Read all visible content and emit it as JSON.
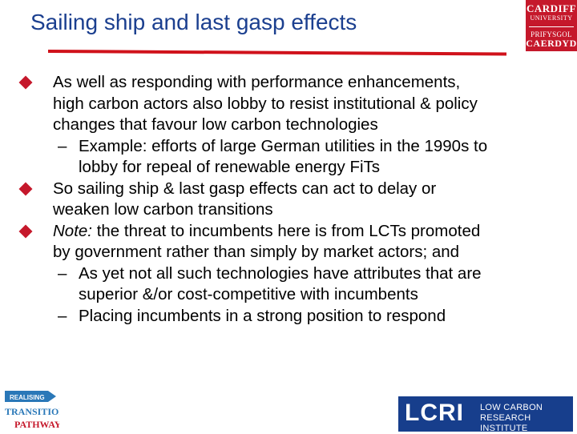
{
  "slide": {
    "title": "Sailing ship and last gasp effects"
  },
  "bullets": [
    {
      "lines": [
        "As well as responding with performance enhancements,",
        "high carbon actors also lobby to resist institutional & policy",
        "changes that favour low carbon technologies"
      ],
      "subs": [
        {
          "dash": "–",
          "lines": [
            "Example: efforts of large German utilities in the 1990s to",
            "lobby for repeal of renewable energy FiTs"
          ]
        }
      ]
    },
    {
      "lines": [
        "So sailing ship & last gasp effects can act to delay or",
        "weaken low carbon transitions"
      ],
      "subs": []
    },
    {
      "lead_italic": "Note:",
      "lines": [
        " the threat to incumbents here is from LCTs promoted",
        "by government rather than simply by market actors; and"
      ],
      "subs": [
        {
          "dash": "–",
          "lines": [
            "As yet not all such technologies have attributes that are",
            "superior &/or cost-competitive with incumbents"
          ]
        },
        {
          "dash": "–",
          "lines": [
            "Placing incumbents in a strong position to respond"
          ]
        }
      ]
    }
  ],
  "logos": {
    "cardiff": {
      "line1": "CARDIFF",
      "line2": "UNIVERSITY",
      "line3": "PRIFYSGOL",
      "line4": "CAERDYD"
    },
    "transition_pathways": {
      "line1": "REALISING",
      "line2": "TRANSITION",
      "line3": "PATHWAYS"
    },
    "lcri": {
      "big": "LCRI",
      "small1": "LOW CARBON",
      "small2": "RESEARCH INSTITUTE"
    }
  },
  "colors": {
    "title": "#1b3f8f",
    "rule": "#d0121b",
    "bullet": "#c5182b",
    "lcri_bg": "#173e8c",
    "cardiff_bg": "#c5182b"
  }
}
